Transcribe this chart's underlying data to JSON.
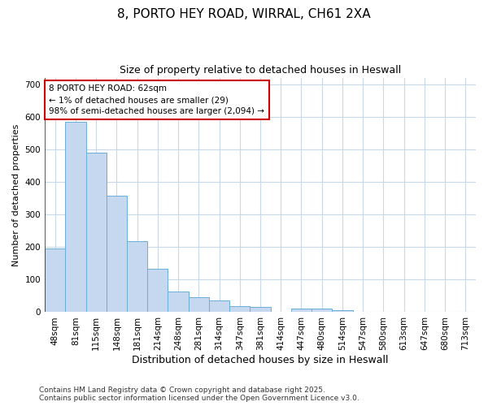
{
  "title1": "8, PORTO HEY ROAD, WIRRAL, CH61 2XA",
  "title2": "Size of property relative to detached houses in Heswall",
  "xlabel": "Distribution of detached houses by size in Heswall",
  "ylabel": "Number of detached properties",
  "categories": [
    "48sqm",
    "81sqm",
    "115sqm",
    "148sqm",
    "181sqm",
    "214sqm",
    "248sqm",
    "281sqm",
    "314sqm",
    "347sqm",
    "381sqm",
    "414sqm",
    "447sqm",
    "480sqm",
    "514sqm",
    "547sqm",
    "580sqm",
    "613sqm",
    "647sqm",
    "680sqm",
    "713sqm"
  ],
  "values": [
    196,
    585,
    490,
    357,
    217,
    133,
    63,
    45,
    36,
    18,
    17,
    0,
    11,
    11,
    6,
    0,
    0,
    0,
    0,
    0,
    0
  ],
  "bar_color": "#c5d8ef",
  "bar_edge_color": "#6aaed6",
  "annotation_text": "8 PORTO HEY ROAD: 62sqm\n← 1% of detached houses are smaller (29)\n98% of semi-detached houses are larger (2,094) →",
  "annotation_box_facecolor": "#ffffff",
  "annotation_box_edgecolor": "#cc0000",
  "vline_color": "#cc0000",
  "ylim": [
    0,
    720
  ],
  "yticks": [
    0,
    100,
    200,
    300,
    400,
    500,
    600,
    700
  ],
  "bg_color": "#ffffff",
  "grid_color": "#c8d8e8",
  "footer": "Contains HM Land Registry data © Crown copyright and database right 2025.\nContains public sector information licensed under the Open Government Licence v3.0.",
  "title1_fontsize": 11,
  "title2_fontsize": 9,
  "xlabel_fontsize": 9,
  "ylabel_fontsize": 8,
  "tick_fontsize": 7.5,
  "annotation_fontsize": 7.5,
  "footer_fontsize": 6.5
}
